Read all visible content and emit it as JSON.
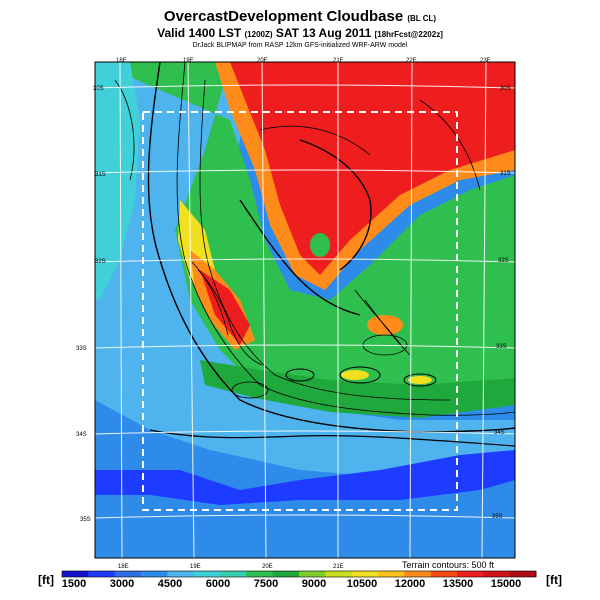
{
  "header": {
    "title": "OvercastDevelopment Cloudbase",
    "title_tag": "(BL CL)",
    "subtitle": "Valid 1400 LST",
    "subtitle_utc": "(1200Z)",
    "subtitle_date": "SAT 13 Aug 2011",
    "subtitle_forecast": "[18hrFcst@2202z]",
    "credit": "DrJack BLIPMAP from RASP 12km GFS-initialized WRF-ARW model"
  },
  "map": {
    "top_lon_labels": [
      "18E",
      "19E",
      "20E",
      "21E",
      "22E",
      "23E"
    ],
    "bottom_lon_labels": [
      "18E",
      "19E",
      "20E",
      "21E"
    ],
    "lat_labels": [
      "30S",
      "31S",
      "32S",
      "33S",
      "34S",
      "35S"
    ],
    "left_lat_labels": [
      "30S",
      "31S",
      "32S",
      "33S",
      "34S",
      "35S"
    ],
    "terrain_note": "Terrain contours: 500 ft",
    "colors": {
      "deep_blue": "#1e3cff",
      "blue": "#2e8bea",
      "light_blue": "#4fb3ee",
      "cyan": "#3fd0d8",
      "green": "#2fbf4f",
      "dark_green": "#1fa83c",
      "yellow": "#f0e020",
      "orange": "#ff8c1a",
      "red_orange": "#ff4a14",
      "red": "#ef1e1e"
    }
  },
  "colorbar": {
    "unit": "[ft]",
    "labels": [
      "1500",
      "3000",
      "4500",
      "6000",
      "7500",
      "9000",
      "10500",
      "12000",
      "13500",
      "15000"
    ],
    "colors": [
      "#1414cc",
      "#1e3cff",
      "#2e6fe8",
      "#2e8bea",
      "#4fb3ee",
      "#3fd0d8",
      "#36d0b0",
      "#2fbf4f",
      "#1fa83c",
      "#7fcf2a",
      "#c8df1e",
      "#f0e020",
      "#ffc21a",
      "#ff8c1a",
      "#ff4a14",
      "#ef1e1e",
      "#d4121a",
      "#b00a14"
    ]
  }
}
